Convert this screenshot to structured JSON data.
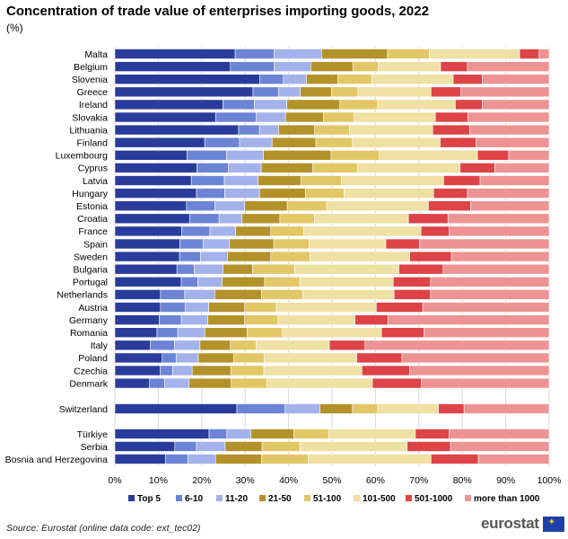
{
  "chart_data": {
    "type": "bar",
    "orientation": "horizontal",
    "stacked": true,
    "title": "Concentration of trade value of enterprises importing goods, 2022",
    "subtitle": "(%)",
    "xlim": [
      0,
      100
    ],
    "x_ticks": [
      "0%",
      "10%",
      "20%",
      "30%",
      "40%",
      "50%",
      "60%",
      "70%",
      "80%",
      "90%",
      "100%"
    ],
    "legend_position": "bottom",
    "segments": [
      {
        "name": "Top 5",
        "color": "#2a3c9b"
      },
      {
        "name": "6-10",
        "color": "#6b84d6"
      },
      {
        "name": "11-20",
        "color": "#a3b2ea"
      },
      {
        "name": "21-50",
        "color": "#b3922a"
      },
      {
        "name": "51-100",
        "color": "#e2c766"
      },
      {
        "name": "101-500",
        "color": "#efe0a3"
      },
      {
        "name": "501-1000",
        "color": "#dd4347"
      },
      {
        "name": "more than 1000",
        "color": "#ee9394"
      }
    ],
    "categories": [
      {
        "label": "Malta",
        "values": [
          27.7,
          9.0,
          10.9,
          15.2,
          9.6,
          20.8,
          4.5,
          2.3
        ]
      },
      {
        "label": "Belgium",
        "values": [
          26.6,
          10.1,
          8.4,
          9.7,
          5.8,
          14.4,
          6.2,
          18.8
        ]
      },
      {
        "label": "Slovenia",
        "values": [
          33.4,
          5.4,
          5.3,
          7.2,
          7.9,
          18.7,
          6.7,
          15.4
        ]
      },
      {
        "label": "Greece",
        "values": [
          31.8,
          5.9,
          5.0,
          7.2,
          6.1,
          16.8,
          6.9,
          20.3
        ]
      },
      {
        "label": "Ireland",
        "values": [
          24.9,
          7.2,
          7.5,
          12.2,
          8.7,
          17.9,
          6.2,
          15.4
        ]
      },
      {
        "label": "Slovakia",
        "values": [
          23.2,
          9.3,
          6.8,
          8.7,
          7.1,
          18.7,
          7.5,
          18.7
        ]
      },
      {
        "label": "Lithuania",
        "values": [
          28.5,
          4.8,
          4.4,
          8.3,
          8.0,
          19.2,
          8.5,
          18.3
        ]
      },
      {
        "label": "Finland",
        "values": [
          20.7,
          8.0,
          7.5,
          10.1,
          8.4,
          20.2,
          8.3,
          16.8
        ]
      },
      {
        "label": "Luxembourg",
        "values": [
          16.6,
          9.1,
          8.5,
          15.6,
          11.1,
          22.6,
          7.2,
          9.3
        ]
      },
      {
        "label": "Cyprus",
        "values": [
          18.9,
          7.2,
          7.6,
          11.9,
          10.3,
          23.6,
          8.0,
          12.5
        ]
      },
      {
        "label": "Latvia",
        "values": [
          17.6,
          7.6,
          7.8,
          9.9,
          9.3,
          23.5,
          8.4,
          15.9
        ]
      },
      {
        "label": "Hungary",
        "values": [
          18.8,
          6.5,
          8.0,
          10.6,
          8.9,
          20.6,
          7.8,
          18.8
        ]
      },
      {
        "label": "Estonia",
        "values": [
          16.5,
          6.5,
          6.9,
          9.8,
          9.1,
          23.4,
          9.7,
          18.1
        ]
      },
      {
        "label": "Croatia",
        "values": [
          17.2,
          6.8,
          5.3,
          8.7,
          8.0,
          21.6,
          9.1,
          23.3
        ]
      },
      {
        "label": "France",
        "values": [
          15.4,
          6.5,
          5.9,
          8.1,
          7.6,
          27.0,
          6.5,
          23.0
        ]
      },
      {
        "label": "Spain",
        "values": [
          15.0,
          5.3,
          6.1,
          10.2,
          8.1,
          17.7,
          7.7,
          29.9
        ]
      },
      {
        "label": "Sweden",
        "values": [
          14.9,
          4.8,
          6.2,
          10.0,
          9.0,
          23.0,
          9.6,
          22.5
        ]
      },
      {
        "label": "Bulgaria",
        "values": [
          14.3,
          4.0,
          6.6,
          6.8,
          9.7,
          24.0,
          10.2,
          24.4
        ]
      },
      {
        "label": "Portugal",
        "values": [
          15.3,
          3.8,
          5.6,
          9.8,
          8.1,
          21.5,
          8.6,
          27.3
        ]
      },
      {
        "label": "Netherlands",
        "values": [
          10.5,
          5.6,
          6.9,
          10.8,
          9.5,
          21.0,
          8.4,
          27.3
        ]
      },
      {
        "label": "Austria",
        "values": [
          10.5,
          5.7,
          5.4,
          8.3,
          7.3,
          23.0,
          10.7,
          29.1
        ]
      },
      {
        "label": "Germany",
        "values": [
          10.2,
          5.1,
          6.1,
          8.5,
          7.7,
          17.7,
          7.6,
          37.1
        ]
      },
      {
        "label": "Romania",
        "values": [
          9.7,
          4.8,
          6.2,
          9.8,
          8.1,
          22.8,
          9.8,
          28.8
        ]
      },
      {
        "label": "Italy",
        "values": [
          8.2,
          5.5,
          5.9,
          7.0,
          5.9,
          16.9,
          8.2,
          42.4
        ]
      },
      {
        "label": "Poland",
        "values": [
          10.9,
          3.2,
          5.1,
          8.2,
          7.0,
          21.3,
          10.4,
          33.9
        ]
      },
      {
        "label": "Czechia",
        "values": [
          10.4,
          2.9,
          4.5,
          8.9,
          7.6,
          22.6,
          11.0,
          32.1
        ]
      },
      {
        "label": "Denmark",
        "values": [
          8.0,
          3.5,
          5.6,
          9.7,
          8.2,
          24.3,
          11.3,
          29.4
        ]
      },
      {
        "label": "Switzerland",
        "values": [
          28.1,
          11.1,
          8.0,
          7.5,
          5.8,
          14.0,
          5.9,
          19.6
        ]
      },
      {
        "label": "Türkiye",
        "values": [
          21.7,
          4.1,
          5.5,
          9.9,
          8.1,
          19.9,
          7.8,
          23.0
        ]
      },
      {
        "label": "Serbia",
        "values": [
          13.8,
          5.0,
          6.6,
          8.5,
          8.7,
          24.7,
          10.0,
          22.7
        ]
      },
      {
        "label": "Bosnia and Herzegovina",
        "values": [
          11.7,
          5.1,
          6.4,
          10.6,
          10.7,
          28.3,
          10.9,
          16.3
        ]
      }
    ]
  },
  "source": "Source: Eurostat (online data code: ext_tec02)",
  "logo": "eurostat"
}
